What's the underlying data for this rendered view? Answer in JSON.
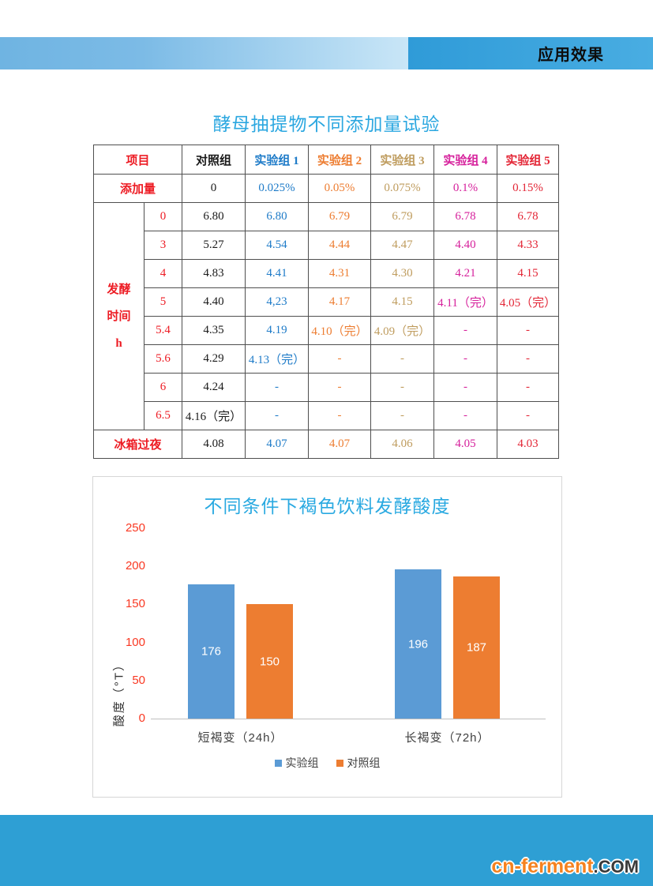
{
  "header": {
    "title": "应用效果"
  },
  "section_title": "酵母抽提物不同添加量试验",
  "footer": {
    "brand": "cn-ferment",
    "brand_suffix": ".COM"
  },
  "colors": {
    "band_blue": "#2f9bd8",
    "band_light_blue": "#c9e6f7",
    "footer_blue": "#2e9fd4",
    "title_blue": "#2ba7e0",
    "brand_orange": "#f5821f",
    "tick_red": "#f93822"
  },
  "table": {
    "columns": [
      "项目",
      "对照组",
      "实验组 1",
      "实验组 2",
      "实验组 3",
      "实验组 4",
      "实验组 5"
    ],
    "data_column_colors": [
      "#1a1a1a",
      "#1e7bc8",
      "#ed7d31",
      "#bf9c5e",
      "#d6219c",
      "#e32636"
    ],
    "label_color": "#ed1c24",
    "addition": {
      "label": "添加量",
      "values": [
        "0",
        "0.025%",
        "0.05%",
        "0.075%",
        "0.1%",
        "0.15%"
      ]
    },
    "time_block": {
      "label_lines": [
        "发酵",
        "时间",
        "h"
      ],
      "rows": [
        {
          "time": "0",
          "values": [
            "6.80",
            "6.80",
            "6.79",
            "6.79",
            "6.78",
            "6.78"
          ]
        },
        {
          "time": "3",
          "values": [
            "5.27",
            "4.54",
            "4.44",
            "4.47",
            "4.40",
            "4.33"
          ]
        },
        {
          "time": "4",
          "values": [
            "4.83",
            "4.41",
            "4.31",
            "4.30",
            "4.21",
            "4.15"
          ]
        },
        {
          "time": "5",
          "values": [
            "4.40",
            "4,23",
            "4.17",
            "4.15",
            "4.11（完）",
            "4.05（完）"
          ]
        },
        {
          "time": "5.4",
          "values": [
            "4.35",
            "4.19",
            "4.10（完）",
            "4.09（完）",
            "-",
            "-"
          ]
        },
        {
          "time": "5.6",
          "values": [
            "4.29",
            "4.13（完）",
            "-",
            "-",
            "-",
            "-"
          ]
        },
        {
          "time": "6",
          "values": [
            "4.24",
            "-",
            "-",
            "-",
            "-",
            "-"
          ]
        },
        {
          "time": "6.5",
          "values": [
            "4.16（完）",
            "-",
            "-",
            "-",
            "-",
            "-"
          ]
        }
      ]
    },
    "overnight": {
      "label": "冰箱过夜",
      "values": [
        "4.08",
        "4.07",
        "4.07",
        "4.06",
        "4.05",
        "4.03"
      ]
    }
  },
  "chart_data": {
    "type": "bar",
    "title": "不同条件下褐色饮料发酵酸度",
    "categories": [
      "短褐变（24h）",
      "长褐变（72h）"
    ],
    "series": [
      {
        "name": "实验组",
        "color": "#5b9bd5",
        "values": [
          176,
          196
        ]
      },
      {
        "name": "对照组",
        "color": "#ed7d31",
        "values": [
          150,
          187
        ]
      }
    ],
    "ylabel": "酸度（°T）",
    "ylim": [
      0,
      250
    ],
    "yticks": [
      0,
      50,
      100,
      150,
      200,
      250
    ],
    "tick_color": "#f93822",
    "grid": false,
    "legend_position": "bottom"
  }
}
